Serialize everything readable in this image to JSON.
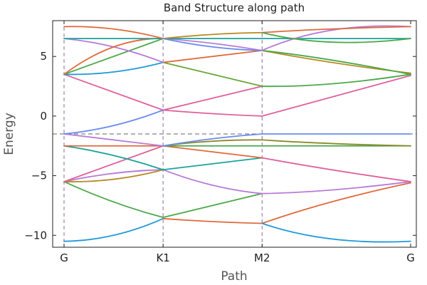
{
  "chart_data": {
    "type": "line",
    "title": "Band Structure along path",
    "xlabel": "Path",
    "ylabel": "Energy",
    "xlim": [
      0,
      3.5
    ],
    "ylim": [
      -11,
      8
    ],
    "x_ticks": [
      {
        "value": 0,
        "label": "G"
      },
      {
        "value": 1,
        "label": "K1"
      },
      {
        "value": 2,
        "label": "M2"
      },
      {
        "value": 3.5,
        "label": "G"
      }
    ],
    "y_ticks": [
      {
        "value": -10,
        "label": "−10"
      },
      {
        "value": -5,
        "label": "−5"
      },
      {
        "value": 0,
        "label": "0"
      },
      {
        "value": 5,
        "label": "5"
      }
    ],
    "vertical_lines_at": [
      0,
      1,
      2
    ],
    "horizontal_line_at": -1.5,
    "grid": false,
    "legend": "none",
    "series": [
      {
        "color": "#1f9ad6",
        "x": [
          0,
          0.5,
          1
        ],
        "y": [
          -10.5,
          -10.0,
          -8.6
        ]
      },
      {
        "color": "#e0693b",
        "x": [
          1,
          1.5,
          2
        ],
        "y": [
          -8.6,
          -8.85,
          -9.0
        ]
      },
      {
        "color": "#e0693b",
        "x": [
          2,
          2.7,
          3.5
        ],
        "y": [
          -9.0,
          -7.2,
          -5.6
        ]
      },
      {
        "color": "#1f9ad6",
        "x": [
          2,
          2.7,
          3.5
        ],
        "y": [
          -9.0,
          -10.3,
          -10.5
        ]
      },
      {
        "color": "#4aa84a",
        "x": [
          0,
          0.5,
          1
        ],
        "y": [
          -5.5,
          -7.2,
          -8.5
        ]
      },
      {
        "color": "#4aa84a",
        "x": [
          1,
          1.5,
          2
        ],
        "y": [
          -8.5,
          -7.5,
          -6.5
        ]
      },
      {
        "color": "#b87bd8",
        "x": [
          0,
          0.5,
          1
        ],
        "y": [
          -5.5,
          -4.8,
          -4.5
        ]
      },
      {
        "color": "#b87bd8",
        "x": [
          1,
          1.5,
          2
        ],
        "y": [
          -4.5,
          -5.8,
          -6.5
        ]
      },
      {
        "color": "#b87bd8",
        "x": [
          2,
          2.7,
          3.5
        ],
        "y": [
          -6.5,
          -6.2,
          -5.5
        ]
      },
      {
        "color": "#b58a20",
        "x": [
          0,
          0.5,
          1
        ],
        "y": [
          -5.5,
          -5.3,
          -4.5
        ]
      },
      {
        "color": "#1aa39a",
        "x": [
          1,
          1.5,
          2
        ],
        "y": [
          -4.5,
          -4.0,
          -3.5
        ]
      },
      {
        "color": "#e0609a",
        "x": [
          2,
          2.7,
          3.5
        ],
        "y": [
          -3.5,
          -4.5,
          -5.5
        ]
      },
      {
        "color": "#e0609a",
        "x": [
          0,
          0.5,
          1
        ],
        "y": [
          -5.5,
          -4.0,
          -2.5
        ]
      },
      {
        "color": "#1aa39a",
        "x": [
          0,
          0.5,
          1
        ],
        "y": [
          -2.5,
          -3.3,
          -4.5
        ]
      },
      {
        "color": "#e0693b",
        "x": [
          1,
          1.5,
          2
        ],
        "y": [
          -2.5,
          -3.0,
          -3.5
        ]
      },
      {
        "color": "#e0693b",
        "x": [
          0,
          0.5,
          1
        ],
        "y": [
          -2.5,
          -2.5,
          -2.5
        ]
      },
      {
        "color": "#4aa84a",
        "x": [
          1,
          1.5,
          2
        ],
        "y": [
          -2.5,
          -2.5,
          -2.5
        ]
      },
      {
        "color": "#4aa84a",
        "x": [
          2,
          2.7,
          3.5
        ],
        "y": [
          -2.5,
          -2.5,
          -2.5
        ]
      },
      {
        "color": "#8a8a2a",
        "x": [
          2,
          2.7,
          3.5
        ],
        "y": [
          -2.0,
          -2.3,
          -2.5
        ]
      },
      {
        "color": "#8a8a2a",
        "x": [
          1,
          1.5,
          2
        ],
        "y": [
          -2.5,
          -2.1,
          -2.0
        ]
      },
      {
        "color": "#b87bd8",
        "x": [
          0,
          0.5,
          1
        ],
        "y": [
          -1.5,
          -2.0,
          -2.5
        ]
      },
      {
        "color": "#6a8cf0",
        "x": [
          1,
          1.5,
          2
        ],
        "y": [
          -2.5,
          -1.9,
          -1.5
        ]
      },
      {
        "color": "#6a8cf0",
        "x": [
          2,
          2.7,
          3.5
        ],
        "y": [
          -1.5,
          -1.5,
          -1.5
        ]
      },
      {
        "color": "#6a8cf0",
        "x": [
          0,
          0.5,
          1
        ],
        "y": [
          -1.5,
          -0.8,
          0.5
        ]
      },
      {
        "color": "#e0609a",
        "x": [
          1,
          1.5,
          2
        ],
        "y": [
          0.5,
          0.2,
          0.0
        ]
      },
      {
        "color": "#e0609a",
        "x": [
          2,
          2.7,
          3.5
        ],
        "y": [
          0.0,
          1.6,
          3.4
        ]
      },
      {
        "color": "#e0609a",
        "x": [
          0,
          0.5,
          1
        ],
        "y": [
          3.5,
          2.0,
          0.5
        ]
      },
      {
        "color": "#e0609a",
        "x": [
          1,
          1.5,
          2
        ],
        "y": [
          0.5,
          1.5,
          2.5
        ]
      },
      {
        "color": "#4aa84a",
        "x": [
          2,
          2.7,
          3.5
        ],
        "y": [
          2.5,
          2.7,
          3.5
        ]
      },
      {
        "color": "#6ca63a",
        "x": [
          1,
          1.5,
          2
        ],
        "y": [
          4.5,
          3.5,
          2.5
        ]
      },
      {
        "color": "#1f9ad6",
        "x": [
          0,
          0.5,
          1
        ],
        "y": [
          3.5,
          3.7,
          4.5
        ]
      },
      {
        "color": "#e0693b",
        "x": [
          1,
          1.5,
          2
        ],
        "y": [
          4.5,
          5.0,
          5.5
        ]
      },
      {
        "color": "#b58a20",
        "x": [
          2,
          2.7,
          3.5
        ],
        "y": [
          5.5,
          4.5,
          3.6
        ]
      },
      {
        "color": "#4aa84a",
        "x": [
          0,
          0.5,
          1
        ],
        "y": [
          3.5,
          5.0,
          6.5
        ]
      },
      {
        "color": "#b87bd8",
        "x": [
          1,
          1.5,
          2
        ],
        "y": [
          6.5,
          6.1,
          5.5
        ]
      },
      {
        "color": "#4aa84a",
        "x": [
          2,
          2.7,
          3.5
        ],
        "y": [
          5.5,
          4.7,
          3.5
        ]
      },
      {
        "color": "#b87bd8",
        "x": [
          0,
          0.5,
          1
        ],
        "y": [
          6.5,
          5.8,
          4.5
        ]
      },
      {
        "color": "#e0693b",
        "x": [
          0,
          0.5,
          1
        ],
        "y": [
          3.5,
          5.8,
          6.5
        ]
      },
      {
        "color": "#1aa39a",
        "x": [
          0,
          0.5,
          1
        ],
        "y": [
          6.5,
          6.5,
          6.5
        ]
      },
      {
        "color": "#1aa39a",
        "x": [
          1,
          1.5,
          2
        ],
        "y": [
          6.5,
          6.5,
          6.5
        ]
      },
      {
        "color": "#1aa39a",
        "x": [
          2,
          2.7,
          3.5
        ],
        "y": [
          6.5,
          6.5,
          6.5
        ]
      },
      {
        "color": "#e0693b",
        "x": [
          0,
          0.5,
          1
        ],
        "y": [
          7.5,
          7.3,
          6.5
        ]
      },
      {
        "color": "#b58a20",
        "x": [
          1,
          1.5,
          2
        ],
        "y": [
          6.5,
          6.85,
          7.0
        ]
      },
      {
        "color": "#6a8cf0",
        "x": [
          1,
          1.5,
          2
        ],
        "y": [
          6.5,
          5.8,
          5.5
        ]
      },
      {
        "color": "#b87bd8",
        "x": [
          2,
          2.7,
          3.5
        ],
        "y": [
          5.5,
          7.2,
          7.5
        ]
      },
      {
        "color": "#e0693b",
        "x": [
          2,
          2.7,
          3.5
        ],
        "y": [
          7.0,
          7.3,
          7.5
        ]
      },
      {
        "color": "#4aa84a",
        "x": [
          2,
          2.7,
          3.5
        ],
        "y": [
          7.0,
          6.2,
          6.5
        ]
      }
    ]
  }
}
